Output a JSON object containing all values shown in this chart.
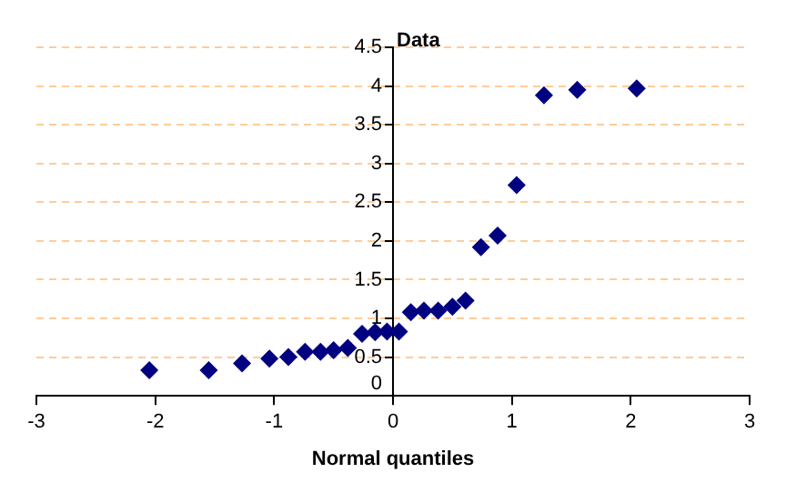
{
  "chart_data": {
    "type": "scatter",
    "xlabel": "Normal quantiles",
    "ylabel": "Data",
    "x": [
      -2.05,
      -1.55,
      -1.27,
      -1.04,
      -0.88,
      -0.74,
      -0.61,
      -0.5,
      -0.38,
      -0.26,
      -0.15,
      -0.05,
      0.05,
      0.15,
      0.26,
      0.38,
      0.5,
      0.61,
      0.74,
      0.88,
      1.04,
      1.27,
      1.55,
      2.05
    ],
    "series": [
      {
        "color": "#000080",
        "values": [
          0.33,
          0.33,
          0.42,
          0.48,
          0.5,
          0.57,
          0.57,
          0.59,
          0.62,
          0.8,
          0.82,
          0.83,
          0.83,
          1.08,
          1.1,
          1.1,
          1.15,
          1.23,
          1.92,
          2.07,
          2.72,
          3.88,
          3.95,
          3.97
        ]
      }
    ],
    "xlim": [
      -3,
      3
    ],
    "xticks": [
      -3,
      -2,
      -1,
      0,
      1,
      2,
      3
    ],
    "ylim": [
      0,
      4.5
    ],
    "yticks": [
      0,
      0.5,
      1,
      1.5,
      2,
      2.5,
      3,
      3.5,
      4,
      4.5
    ],
    "grid": "y",
    "legend": false,
    "marker": "diamond"
  }
}
